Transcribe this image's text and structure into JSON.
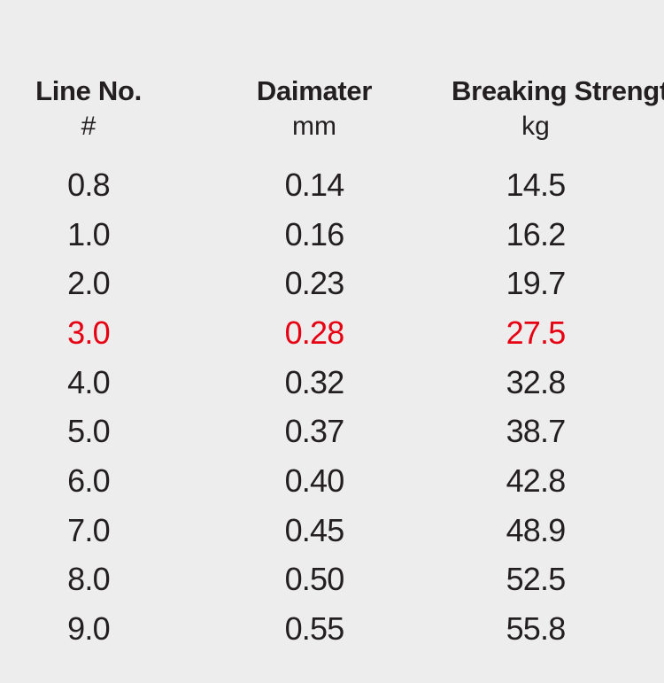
{
  "table": {
    "columns": [
      {
        "title": "Line No.",
        "unit": "#"
      },
      {
        "title": "Daimater",
        "unit": "mm"
      },
      {
        "title": "Breaking Strength",
        "unit": "kg"
      }
    ],
    "rows": [
      {
        "line_no": "0.8",
        "diameter": "0.14",
        "strength": "14.5",
        "highlight": false
      },
      {
        "line_no": "1.0",
        "diameter": "0.16",
        "strength": "16.2",
        "highlight": false
      },
      {
        "line_no": "2.0",
        "diameter": "0.23",
        "strength": "19.7",
        "highlight": false
      },
      {
        "line_no": "3.0",
        "diameter": "0.28",
        "strength": "27.5",
        "highlight": true
      },
      {
        "line_no": "4.0",
        "diameter": "0.32",
        "strength": "32.8",
        "highlight": false
      },
      {
        "line_no": "5.0",
        "diameter": "0.37",
        "strength": "38.7",
        "highlight": false
      },
      {
        "line_no": "6.0",
        "diameter": "0.40",
        "strength": "42.8",
        "highlight": false
      },
      {
        "line_no": "7.0",
        "diameter": "0.45",
        "strength": "48.9",
        "highlight": false
      },
      {
        "line_no": "8.0",
        "diameter": "0.50",
        "strength": "52.5",
        "highlight": false
      },
      {
        "line_no": "9.0",
        "diameter": "0.55",
        "strength": "55.8",
        "highlight": false
      }
    ]
  },
  "colors": {
    "background": "#ededed",
    "text": "#231f20",
    "highlight": "#e60012"
  }
}
